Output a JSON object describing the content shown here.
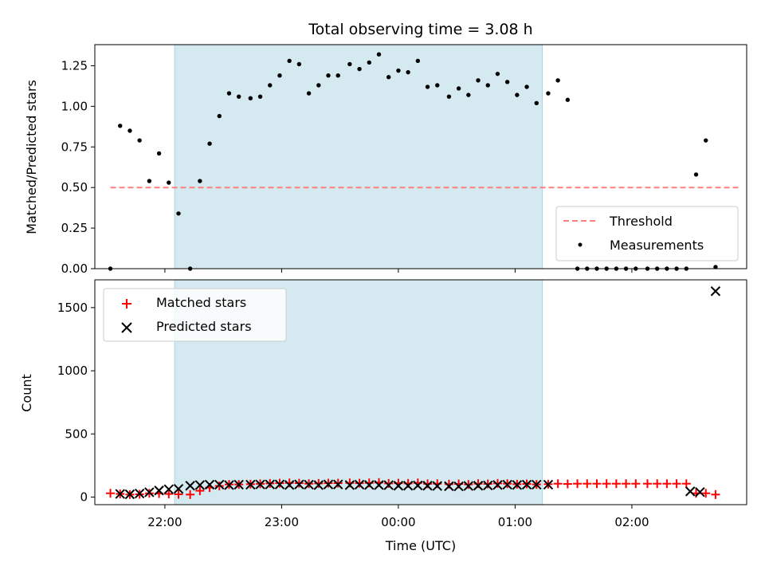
{
  "chart_data": [
    {
      "type": "scatter",
      "title": "Total observing time = 3.08 h",
      "xlabel": "",
      "ylabel": "Matched/Predicted stars",
      "xlim": [
        "21:24",
        "02:59"
      ],
      "ylim": [
        0,
        1.38
      ],
      "yticks": [
        "0.00",
        "0.25",
        "0.50",
        "0.75",
        "1.00",
        "1.25"
      ],
      "highlight_span": {
        "start": "22:05",
        "end": "01:14",
        "color": "#d4eaf0"
      },
      "grid": false,
      "legend": "bottom-right",
      "series": [
        {
          "name": "Threshold",
          "style": "dashed-line",
          "color": "#ff7f7f",
          "x": [
            "21:32",
            "02:55"
          ],
          "y": [
            0.5,
            0.5
          ]
        },
        {
          "name": "Measurements",
          "style": "dot",
          "color": "#000000",
          "x": [
            "21:32",
            "21:37",
            "21:42",
            "21:47",
            "21:52",
            "21:57",
            "22:02",
            "22:07",
            "22:13",
            "22:18",
            "22:23",
            "22:28",
            "22:33",
            "22:38",
            "22:44",
            "22:49",
            "22:54",
            "22:59",
            "23:04",
            "23:09",
            "23:14",
            "23:19",
            "23:24",
            "23:29",
            "23:35",
            "23:40",
            "23:45",
            "23:50",
            "23:55",
            "00:00",
            "00:05",
            "00:10",
            "00:15",
            "00:20",
            "00:26",
            "00:31",
            "00:36",
            "00:41",
            "00:46",
            "00:51",
            "00:56",
            "01:01",
            "01:06",
            "01:11",
            "01:17",
            "01:22",
            "01:27",
            "01:32",
            "01:37",
            "01:42",
            "01:47",
            "01:52",
            "01:57",
            "02:02",
            "02:08",
            "02:13",
            "02:18",
            "02:23",
            "02:28",
            "02:33",
            "02:38",
            "02:43"
          ],
          "y": [
            0.0,
            0.88,
            0.85,
            0.79,
            0.54,
            0.71,
            0.53,
            0.34,
            0.0,
            0.54,
            0.77,
            0.94,
            1.08,
            1.06,
            1.05,
            1.06,
            1.13,
            1.19,
            1.28,
            1.26,
            1.08,
            1.13,
            1.19,
            1.19,
            1.26,
            1.23,
            1.27,
            1.32,
            1.18,
            1.22,
            1.21,
            1.28,
            1.12,
            1.13,
            1.06,
            1.11,
            1.07,
            1.16,
            1.13,
            1.2,
            1.15,
            1.07,
            1.12,
            1.02,
            1.08,
            1.16,
            1.04,
            0.0,
            0.0,
            0.0,
            0.0,
            0.0,
            0.0,
            0.0,
            0.0,
            0.0,
            0.0,
            0.0,
            0.0,
            0.58,
            0.79,
            0.01
          ]
        }
      ]
    },
    {
      "type": "scatter",
      "title": "",
      "xlabel": "Time (UTC)",
      "ylabel": "Count",
      "xlim": [
        "21:24",
        "02:59"
      ],
      "ylim": [
        -60,
        1720
      ],
      "yticks": [
        "0",
        "500",
        "1000",
        "1500"
      ],
      "xticks": [
        "22:00",
        "23:00",
        "00:00",
        "01:00",
        "02:00"
      ],
      "highlight_span": {
        "start": "22:05",
        "end": "01:14",
        "color": "#d4eaf0"
      },
      "grid": false,
      "legend": "top-left",
      "series": [
        {
          "name": "Matched stars",
          "style": "plus",
          "color": "#ff0000",
          "x": [
            "21:32",
            "21:37",
            "21:42",
            "21:47",
            "21:52",
            "21:57",
            "22:02",
            "22:07",
            "22:13",
            "22:18",
            "22:23",
            "22:28",
            "22:33",
            "22:38",
            "22:44",
            "22:49",
            "22:54",
            "22:59",
            "23:04",
            "23:09",
            "23:14",
            "23:19",
            "23:24",
            "23:29",
            "23:35",
            "23:40",
            "23:45",
            "23:50",
            "23:55",
            "00:00",
            "00:05",
            "00:10",
            "00:15",
            "00:20",
            "00:26",
            "00:31",
            "00:36",
            "00:41",
            "00:46",
            "00:51",
            "00:56",
            "01:01",
            "01:06",
            "01:11",
            "01:17",
            "01:22",
            "01:27",
            "01:32",
            "01:37",
            "01:42",
            "01:47",
            "01:52",
            "01:57",
            "02:02",
            "02:08",
            "02:13",
            "02:18",
            "02:23",
            "02:28",
            "02:33",
            "02:38",
            "02:43"
          ],
          "y": [
            30,
            25,
            20,
            22,
            30,
            28,
            25,
            22,
            20,
            50,
            75,
            88,
            100,
            100,
            102,
            105,
            108,
            110,
            112,
            110,
            106,
            108,
            110,
            110,
            112,
            110,
            112,
            115,
            108,
            110,
            108,
            112,
            105,
            106,
            102,
            104,
            100,
            106,
            104,
            108,
            106,
            102,
            104,
            100,
            102,
            106,
            104,
            106,
            106,
            106,
            106,
            106,
            106,
            106,
            106,
            106,
            106,
            106,
            106,
            30,
            30,
            20
          ]
        },
        {
          "name": "Predicted stars",
          "style": "x",
          "color": "#000000",
          "x": [
            "21:37",
            "21:42",
            "21:47",
            "21:52",
            "21:57",
            "22:02",
            "22:07",
            "22:13",
            "22:18",
            "22:23",
            "22:28",
            "22:33",
            "22:38",
            "22:44",
            "22:49",
            "22:54",
            "22:59",
            "23:04",
            "23:09",
            "23:14",
            "23:19",
            "23:24",
            "23:29",
            "23:35",
            "23:40",
            "23:45",
            "23:50",
            "23:55",
            "00:00",
            "00:05",
            "00:10",
            "00:15",
            "00:20",
            "00:26",
            "00:31",
            "00:36",
            "00:41",
            "00:46",
            "00:51",
            "00:56",
            "01:01",
            "01:06",
            "01:11",
            "01:17",
            "02:30",
            "02:35",
            "02:43"
          ],
          "y": [
            25,
            22,
            28,
            38,
            52,
            62,
            65,
            90,
            95,
            98,
            98,
            95,
            98,
            98,
            100,
            100,
            100,
            96,
            100,
            98,
            95,
            100,
            100,
            95,
            98,
            96,
            95,
            94,
            90,
            90,
            92,
            90,
            88,
            86,
            85,
            88,
            90,
            92,
            96,
            98,
            96,
            98,
            98,
            98,
            45,
            40,
            1630
          ]
        }
      ]
    }
  ]
}
